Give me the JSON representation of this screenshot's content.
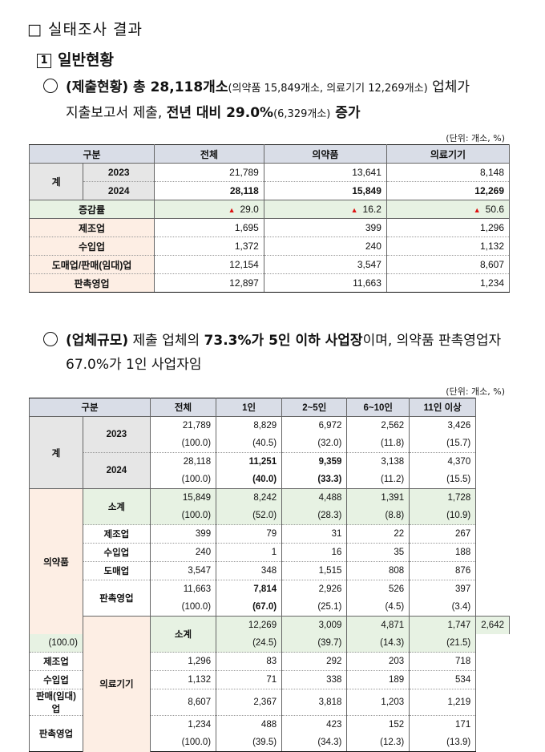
{
  "section": {
    "box": "□",
    "title": "실태조사 결과"
  },
  "subsection": {
    "num": "1",
    "title": "일반현황"
  },
  "para1": {
    "part1": "(제출현황) 총 28,118개소",
    "part2": "(의약품 15,849개소, 의료기기 12,269개소)",
    "part3": " 업체가",
    "line2a": "지출보고서 제출, ",
    "line2b": "전년 대비 29.0%",
    "line2c": "(6,329개소)",
    "line2d": " 증가"
  },
  "table1": {
    "unit": "(단위: 개소, %)",
    "headers": [
      "구분",
      "전체",
      "의약품",
      "의료기기"
    ],
    "total_label": "계",
    "years": [
      {
        "year": "2023",
        "vals": [
          "21,789",
          "13,641",
          "8,148"
        ]
      },
      {
        "year": "2024",
        "vals": [
          "28,118",
          "15,849",
          "12,269"
        ]
      }
    ],
    "growth": {
      "label": "증감률",
      "arrow": "▲",
      "vals": [
        "29.0",
        "16.2",
        "50.6"
      ]
    },
    "rows": [
      {
        "label": "제조업",
        "vals": [
          "1,695",
          "399",
          "1,296"
        ]
      },
      {
        "label": "수입업",
        "vals": [
          "1,372",
          "240",
          "1,132"
        ]
      },
      {
        "label": "도매업/판매(임대)업",
        "vals": [
          "12,154",
          "3,547",
          "8,607"
        ]
      },
      {
        "label": "판촉영업",
        "vals": [
          "12,897",
          "11,663",
          "1,234"
        ]
      }
    ]
  },
  "para2": {
    "part1": "(업체규모)",
    "part2": " 제출 업체의 ",
    "part3": "73.3%가 5인 이하 사업장",
    "part4": "이며, 의약품 판촉영업자",
    "line2": "67.0%가 1인 사업자임"
  },
  "table2": {
    "unit": "(단위: 개소, %)",
    "headers": [
      "구분",
      "전체",
      "1인",
      "2~5인",
      "6~10인",
      "11인 이상"
    ],
    "total_label": "계",
    "years": [
      {
        "year": "2023",
        "a": [
          "21,789",
          "8,829",
          "6,972",
          "2,562",
          "3,426"
        ],
        "b": [
          "(100.0)",
          "(40.5)",
          "(32.0)",
          "(11.8)",
          "(15.7)"
        ]
      },
      {
        "year": "2024",
        "a": [
          "28,118",
          "11,251",
          "9,359",
          "3,138",
          "4,370"
        ],
        "b": [
          "(100.0)",
          "(40.0)",
          "(33.3)",
          "(11.2)",
          "(15.5)"
        ]
      }
    ],
    "drug": {
      "label": "의약품",
      "subtotal": {
        "label": "소계",
        "a": [
          "15,849",
          "8,242",
          "4,488",
          "1,391",
          "1,728"
        ],
        "b": [
          "(100.0)",
          "(52.0)",
          "(28.3)",
          "(8.8)",
          "(10.9)"
        ]
      },
      "rows": [
        {
          "label": "제조업",
          "vals": [
            "399",
            "79",
            "31",
            "22",
            "267"
          ]
        },
        {
          "label": "수입업",
          "vals": [
            "240",
            "1",
            "16",
            "35",
            "188"
          ]
        },
        {
          "label": "도매업",
          "vals": [
            "3,547",
            "348",
            "1,515",
            "808",
            "876"
          ]
        }
      ],
      "promo": {
        "label": "판촉영업",
        "a": [
          "11,663",
          "7,814",
          "2,926",
          "526",
          "397"
        ],
        "b": [
          "(100.0)",
          "(67.0)",
          "(25.1)",
          "(4.5)",
          "(3.4)"
        ]
      }
    },
    "device": {
      "label": "의료기기",
      "subtotal": {
        "label": "소계",
        "a": [
          "12,269",
          "3,009",
          "4,871",
          "1,747",
          "2,642"
        ],
        "b": [
          "(100.0)",
          "(24.5)",
          "(39.7)",
          "(14.3)",
          "(21.5)"
        ]
      },
      "rows": [
        {
          "label": "제조업",
          "vals": [
            "1,296",
            "83",
            "292",
            "203",
            "718"
          ]
        },
        {
          "label": "수입업",
          "vals": [
            "1,132",
            "71",
            "338",
            "189",
            "534"
          ]
        },
        {
          "label": "판매(임대)업",
          "vals": [
            "8,607",
            "2,367",
            "3,818",
            "1,203",
            "1,219"
          ]
        }
      ],
      "promo": {
        "label": "판촉영업",
        "a": [
          "1,234",
          "488",
          "423",
          "152",
          "171"
        ],
        "b": [
          "(100.0)",
          "(39.5)",
          "(34.3)",
          "(12.3)",
          "(13.9)"
        ]
      }
    }
  }
}
